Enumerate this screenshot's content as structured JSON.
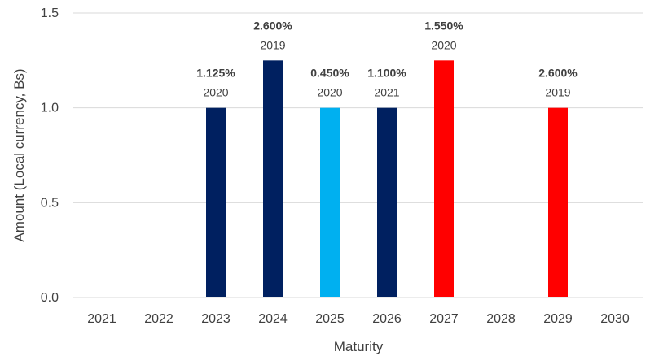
{
  "chart_data": {
    "type": "bar",
    "title": "",
    "xlabel": "Maturity",
    "ylabel": "Amount (Local currency, Bs)",
    "ylim": [
      0,
      1.5
    ],
    "yticks": [
      "0.0",
      "0.5",
      "1.0",
      "1.5"
    ],
    "grid": true,
    "legend": "none",
    "categories": [
      "2021",
      "2022",
      "2023",
      "2024",
      "2025",
      "2026",
      "2027",
      "2028",
      "2029",
      "2030"
    ],
    "bars": [
      {
        "category": "2023",
        "value": 1.0,
        "rate": "1.125%",
        "year": "2020",
        "color": "#002060"
      },
      {
        "category": "2024",
        "value": 1.25,
        "rate": "2.600%",
        "year": "2019",
        "color": "#002060"
      },
      {
        "category": "2025",
        "value": 1.0,
        "rate": "0.450%",
        "year": "2020",
        "color": "#00b0f0"
      },
      {
        "category": "2026",
        "value": 1.0,
        "rate": "1.100%",
        "year": "2021",
        "color": "#002060"
      },
      {
        "category": "2027",
        "value": 1.25,
        "rate": "1.550%",
        "year": "2020",
        "color": "#ff0000"
      },
      {
        "category": "2029",
        "value": 1.0,
        "rate": "2.600%",
        "year": "2019",
        "color": "#ff0000"
      }
    ]
  }
}
